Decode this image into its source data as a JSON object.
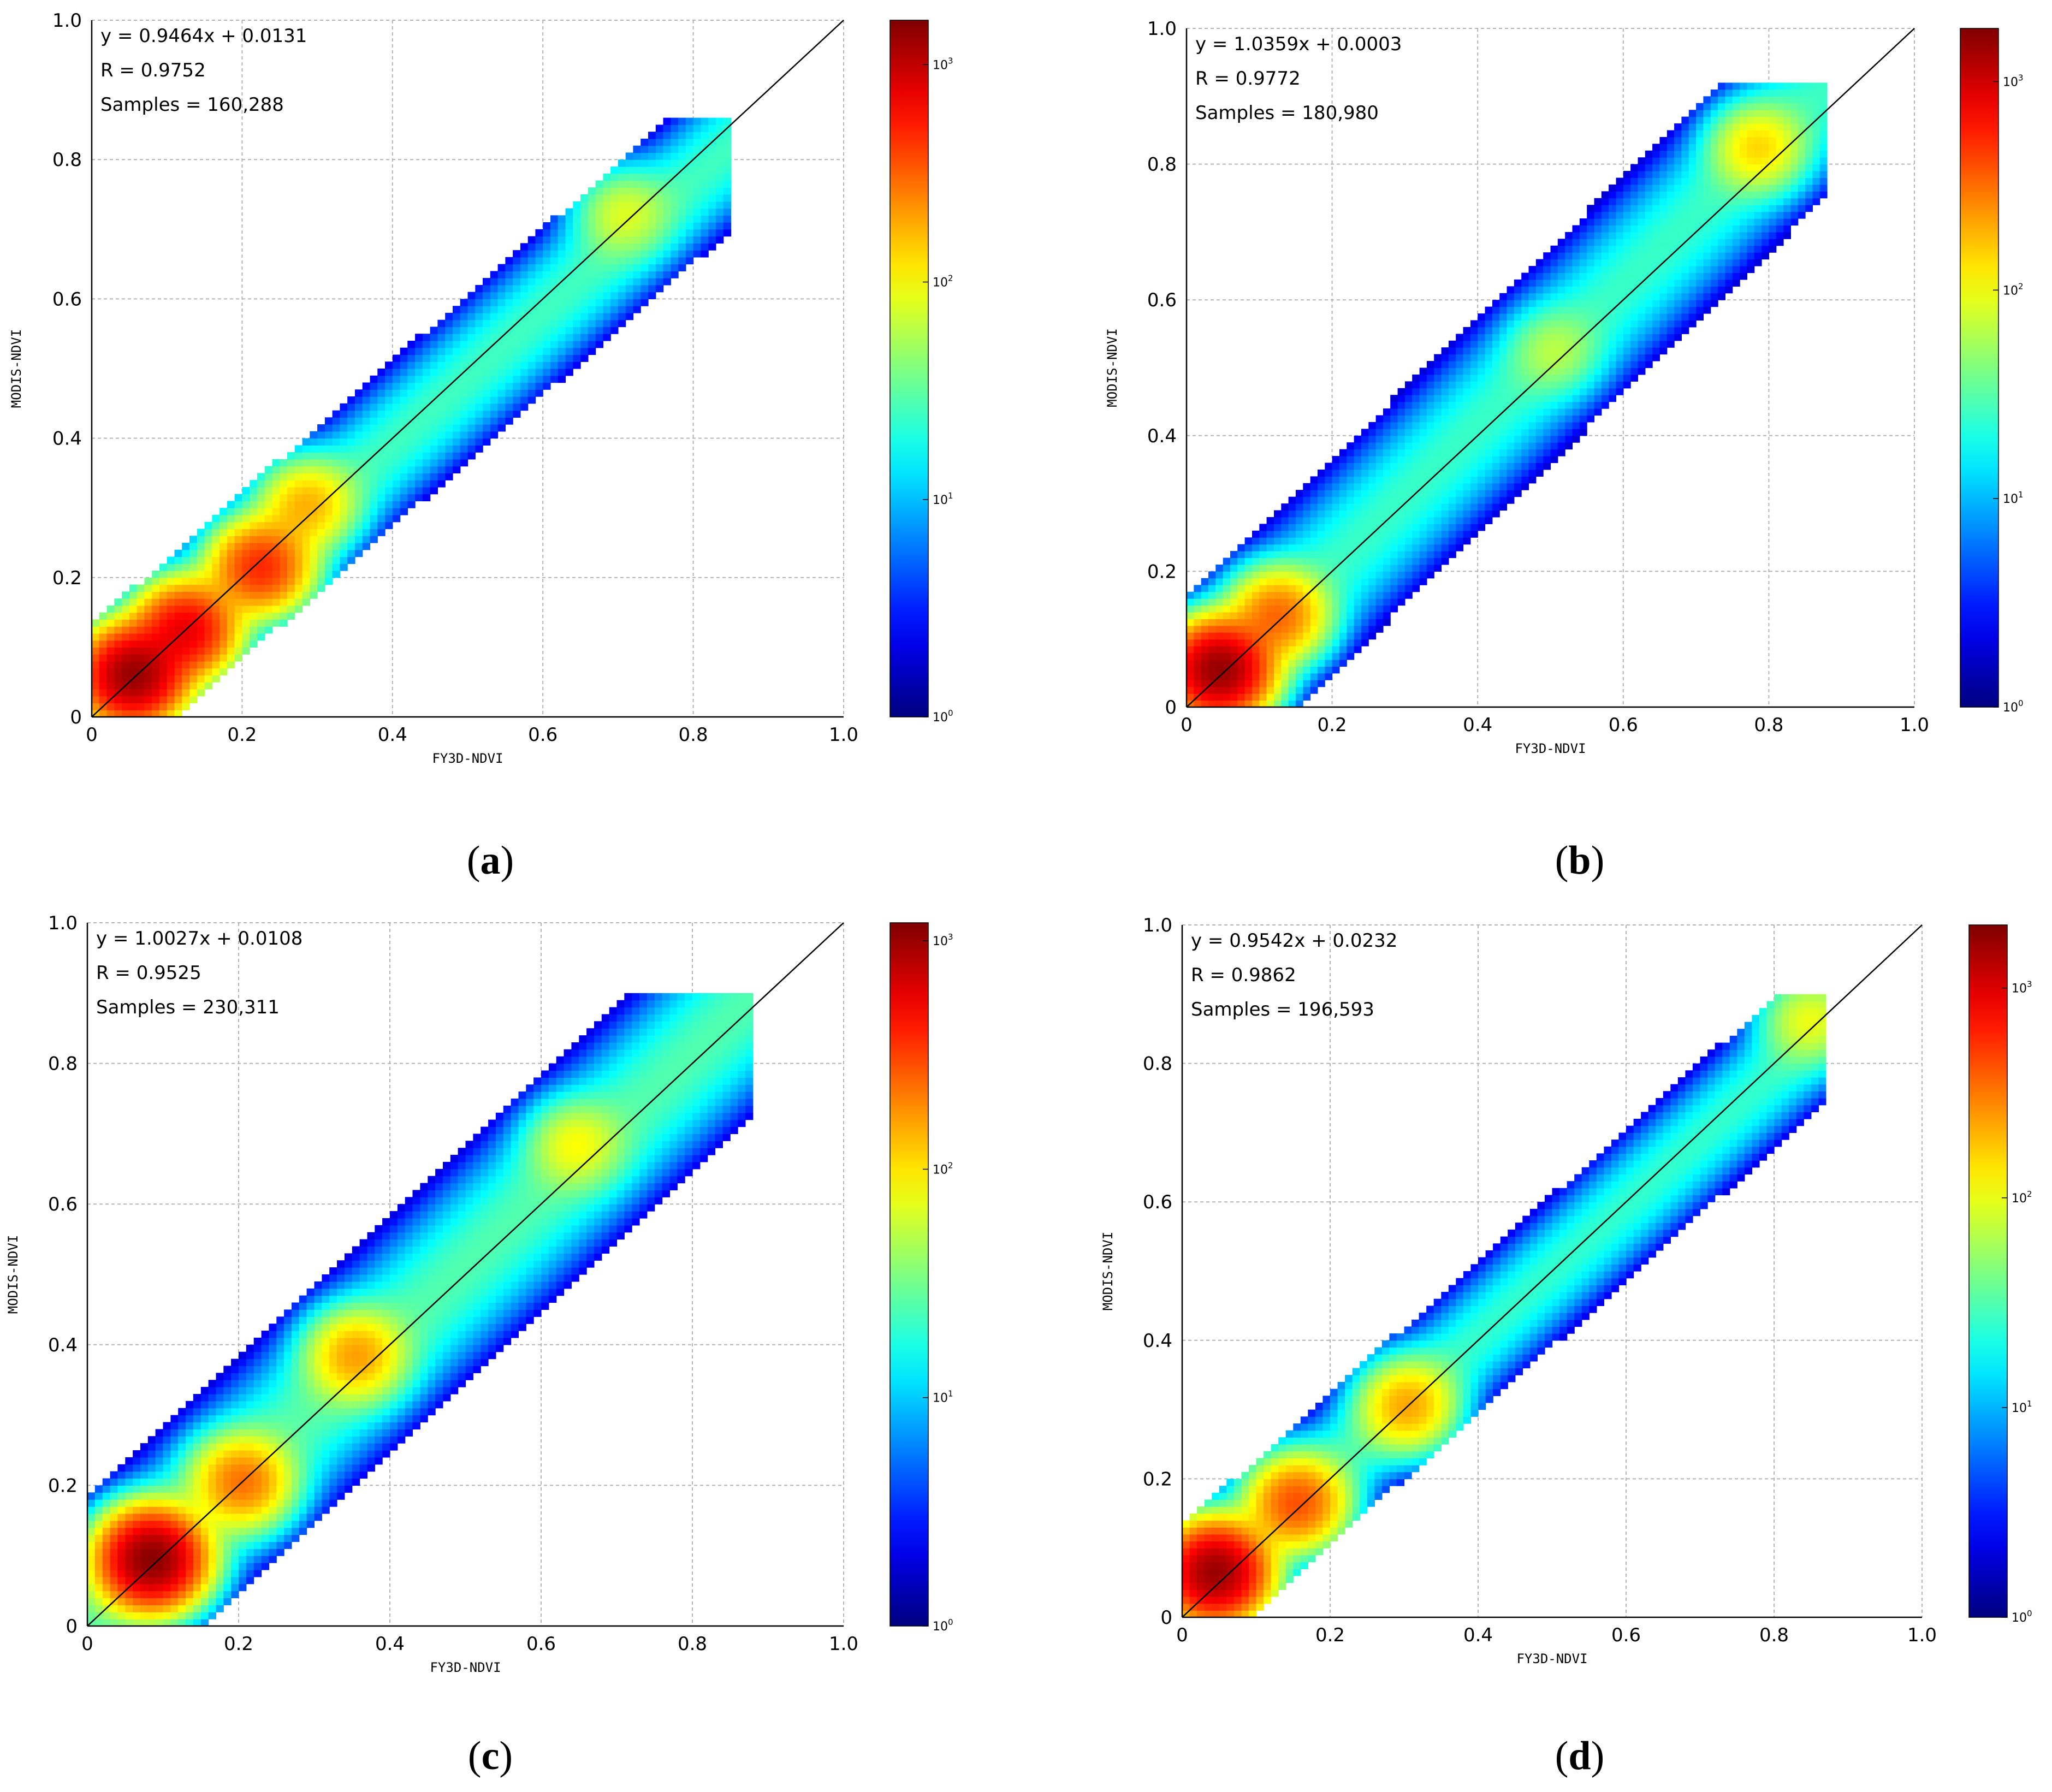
{
  "figure": {
    "panels": [
      {
        "label": "(a)",
        "letter": "a",
        "equation": "y = 0.9464x + 0.0131",
        "r_text": "R = 0.9752",
        "samples_text": "Samples = 160,288"
      },
      {
        "label": "(b)",
        "letter": "b",
        "equation": "y = 1.0359x + 0.0003",
        "r_text": "R = 0.9772",
        "samples_text": "Samples = 180,980"
      },
      {
        "label": "(c)",
        "letter": "c",
        "equation": "y = 1.0027x + 0.0108",
        "r_text": "R = 0.9525",
        "samples_text": "Samples = 230,311"
      },
      {
        "label": "(d)",
        "letter": "d",
        "equation": "y = 0.9542x + 0.0232",
        "r_text": "R = 0.9862",
        "samples_text": "Samples = 196,593"
      }
    ]
  },
  "chart_data": [
    {
      "type": "heatmap",
      "panel": "a",
      "xlabel": "FY3D-NDVI",
      "ylabel": "MODIS-NDVI",
      "xlim": [
        0,
        1.0
      ],
      "ylim": [
        0,
        1.0
      ],
      "x_ticks": [
        "0",
        "0.2",
        "0.4",
        "0.6",
        "0.8",
        "1.0"
      ],
      "y_ticks": [
        "0",
        "0.2",
        "0.4",
        "0.6",
        "0.8",
        "1.0"
      ],
      "grid": true,
      "regression": {
        "slope": 0.9464,
        "intercept": 0.0131,
        "R": 0.9752,
        "samples": 160288
      },
      "colorbar": {
        "scale": "log",
        "min": 1,
        "max": 1600,
        "ticks": [
          {
            "base": "10",
            "exp": "0",
            "value": 1
          },
          {
            "base": "10",
            "exp": "1",
            "value": 10
          },
          {
            "base": "10",
            "exp": "2",
            "value": 100
          },
          {
            "base": "10",
            "exp": "3",
            "value": 1000
          }
        ]
      },
      "density": {
        "x_range": [
          0.0,
          0.85
        ],
        "y_range": [
          0.0,
          0.86
        ],
        "band_width": 0.055,
        "outer_width": 0.12,
        "hotspots": [
          {
            "x": 0.05,
            "y": 0.055,
            "count": 1300
          },
          {
            "x": 0.12,
            "y": 0.12,
            "count": 700
          },
          {
            "x": 0.22,
            "y": 0.21,
            "count": 450
          },
          {
            "x": 0.28,
            "y": 0.3,
            "count": 150
          },
          {
            "x": 0.7,
            "y": 0.72,
            "count": 60
          }
        ]
      }
    },
    {
      "type": "heatmap",
      "panel": "b",
      "xlabel": "FY3D-NDVI",
      "ylabel": "MODIS-NDVI",
      "xlim": [
        0,
        1.0
      ],
      "ylim": [
        0,
        1.0
      ],
      "x_ticks": [
        "0",
        "0.2",
        "0.4",
        "0.6",
        "0.8",
        "1.0"
      ],
      "y_ticks": [
        "0",
        "0.2",
        "0.4",
        "0.6",
        "0.8",
        "1.0"
      ],
      "grid": true,
      "regression": {
        "slope": 1.0359,
        "intercept": 0.0003,
        "R": 0.9772,
        "samples": 180980
      },
      "colorbar": {
        "scale": "log",
        "min": 1,
        "max": 1800,
        "ticks": [
          {
            "base": "10",
            "exp": "0",
            "value": 1
          },
          {
            "base": "10",
            "exp": "1",
            "value": 10
          },
          {
            "base": "10",
            "exp": "2",
            "value": 100
          },
          {
            "base": "10",
            "exp": "3",
            "value": 1000
          }
        ]
      },
      "density": {
        "x_range": [
          0.0,
          0.88
        ],
        "y_range": [
          0.0,
          0.92
        ],
        "band_width": 0.07,
        "outer_width": 0.16,
        "hotspots": [
          {
            "x": 0.04,
            "y": 0.05,
            "count": 1500
          },
          {
            "x": 0.12,
            "y": 0.13,
            "count": 300
          },
          {
            "x": 0.78,
            "y": 0.82,
            "count": 120
          },
          {
            "x": 0.5,
            "y": 0.52,
            "count": 40
          }
        ]
      }
    },
    {
      "type": "heatmap",
      "panel": "c",
      "xlabel": "FY3D-NDVI",
      "ylabel": "MODIS-NDVI",
      "xlim": [
        0,
        1.0
      ],
      "ylim": [
        0,
        1.0
      ],
      "x_ticks": [
        "0",
        "0.2",
        "0.4",
        "0.6",
        "0.8",
        "1.0"
      ],
      "y_ticks": [
        "0",
        "0.2",
        "0.4",
        "0.6",
        "0.8",
        "1.0"
      ],
      "grid": true,
      "regression": {
        "slope": 1.0027,
        "intercept": 0.0108,
        "R": 0.9525,
        "samples": 230311
      },
      "colorbar": {
        "scale": "log",
        "min": 1,
        "max": 1200,
        "ticks": [
          {
            "base": "10",
            "exp": "0",
            "value": 1
          },
          {
            "base": "10",
            "exp": "1",
            "value": 10
          },
          {
            "base": "10",
            "exp": "2",
            "value": 100
          },
          {
            "base": "10",
            "exp": "3",
            "value": 1000
          }
        ]
      },
      "density": {
        "x_range": [
          0.0,
          0.88
        ],
        "y_range": [
          0.0,
          0.9
        ],
        "band_width": 0.075,
        "outer_width": 0.17,
        "hotspots": [
          {
            "x": 0.08,
            "y": 0.09,
            "count": 1100
          },
          {
            "x": 0.2,
            "y": 0.2,
            "count": 200
          },
          {
            "x": 0.35,
            "y": 0.38,
            "count": 140
          },
          {
            "x": 0.64,
            "y": 0.68,
            "count": 60
          }
        ]
      }
    },
    {
      "type": "heatmap",
      "panel": "d",
      "xlabel": "FY3D-NDVI",
      "ylabel": "MODIS-NDVI",
      "xlim": [
        0,
        1.0
      ],
      "ylim": [
        0,
        1.0
      ],
      "x_ticks": [
        "0",
        "0.2",
        "0.4",
        "0.6",
        "0.8",
        "1.0"
      ],
      "y_ticks": [
        "0",
        "0.2",
        "0.4",
        "0.6",
        "0.8",
        "1.0"
      ],
      "grid": true,
      "regression": {
        "slope": 0.9542,
        "intercept": 0.0232,
        "R": 0.9862,
        "samples": 196593
      },
      "colorbar": {
        "scale": "log",
        "min": 1,
        "max": 2000,
        "ticks": [
          {
            "base": "10",
            "exp": "0",
            "value": 1
          },
          {
            "base": "10",
            "exp": "1",
            "value": 10
          },
          {
            "base": "10",
            "exp": "2",
            "value": 100
          },
          {
            "base": "10",
            "exp": "3",
            "value": 1000
          }
        ]
      },
      "density": {
        "x_range": [
          0.0,
          0.87
        ],
        "y_range": [
          0.0,
          0.9
        ],
        "band_width": 0.05,
        "outer_width": 0.11,
        "hotspots": [
          {
            "x": 0.04,
            "y": 0.06,
            "count": 1600
          },
          {
            "x": 0.15,
            "y": 0.16,
            "count": 400
          },
          {
            "x": 0.3,
            "y": 0.3,
            "count": 200
          },
          {
            "x": 0.84,
            "y": 0.86,
            "count": 80
          }
        ]
      }
    }
  ]
}
